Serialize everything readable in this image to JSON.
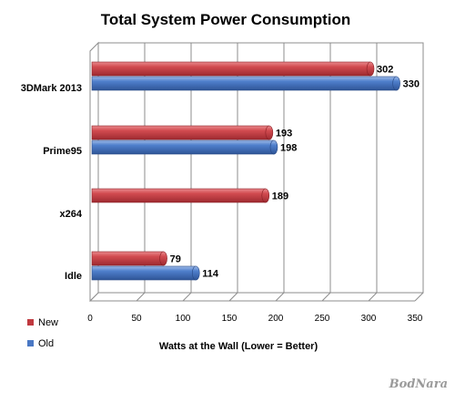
{
  "chart_data": {
    "type": "bar",
    "orientation": "horizontal",
    "title": "Total System Power Consumption",
    "xlabel": "Watts at the Wall (Lower = Better)",
    "ylabel": "",
    "categories": [
      "3DMark 2013",
      "Prime95",
      "x264",
      "Idle"
    ],
    "series": [
      {
        "name": "New",
        "color": "#c0393f",
        "values": [
          302,
          193,
          189,
          79
        ]
      },
      {
        "name": "Old",
        "color": "#4a78c4",
        "values": [
          330,
          198,
          null,
          114
        ]
      }
    ],
    "xlim": [
      0,
      350
    ],
    "xticks": [
      0,
      50,
      100,
      150,
      200,
      250,
      300,
      350
    ],
    "grid": true,
    "legend_position": "bottom-left",
    "watermark": "BodNara"
  }
}
